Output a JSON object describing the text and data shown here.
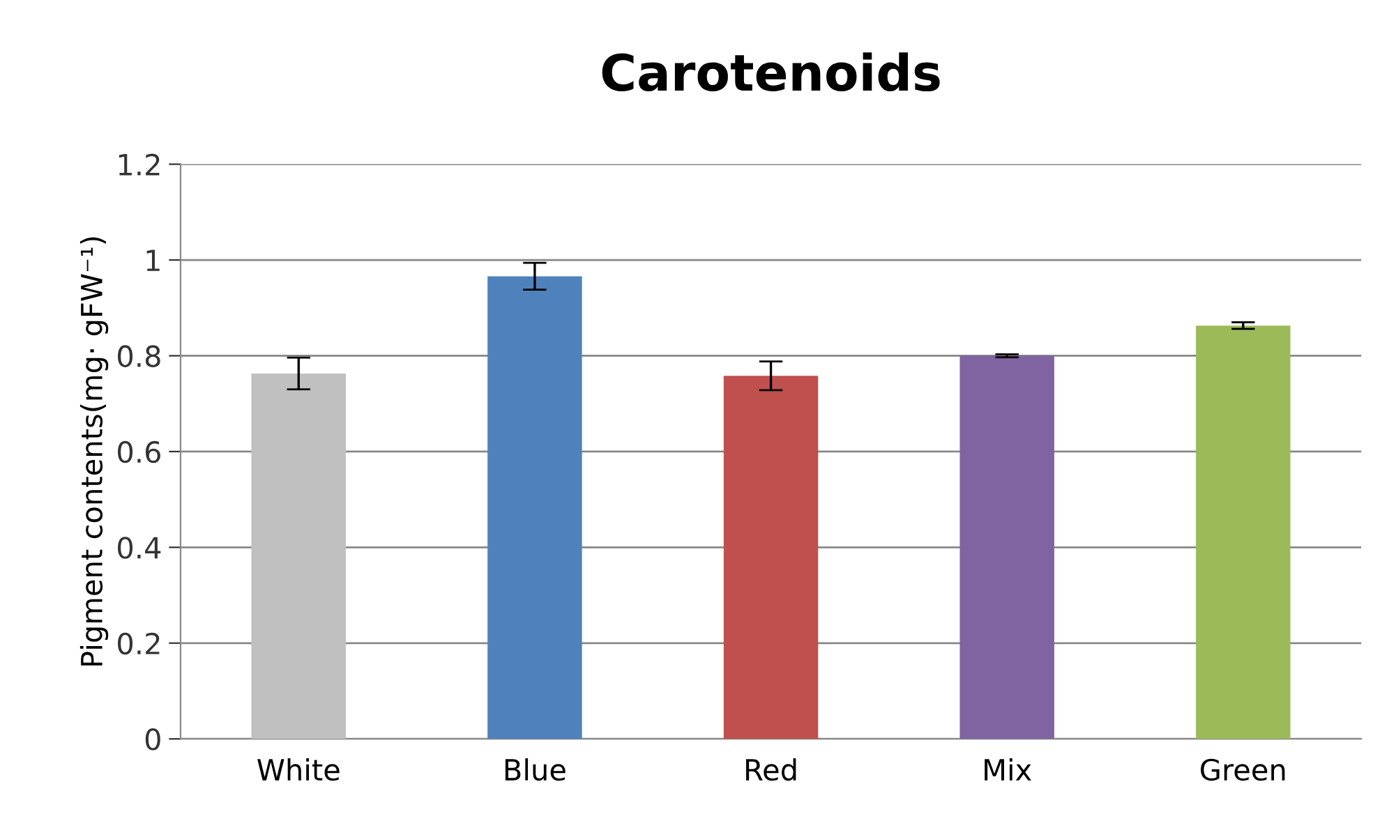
{
  "chart_data": {
    "type": "bar",
    "title": "Carotenoids",
    "ylabel": "Pigment contents(mg· gFW⁻¹)",
    "categories": [
      "White",
      "Blue",
      "Red",
      "Mix",
      "Green"
    ],
    "values": [
      0.763,
      0.966,
      0.758,
      0.8,
      0.863
    ],
    "colors": [
      "#c0c0c0",
      "#4f81bd",
      "#c0504d",
      "#8064a2",
      "#9bbb59"
    ],
    "errors": [
      0.033,
      0.028,
      0.03,
      0.003,
      0.007
    ],
    "ylim": [
      0,
      1.2
    ],
    "yticks": [
      0,
      0.2,
      0.4,
      0.6,
      0.8,
      1,
      1.2
    ],
    "grid": "y"
  }
}
